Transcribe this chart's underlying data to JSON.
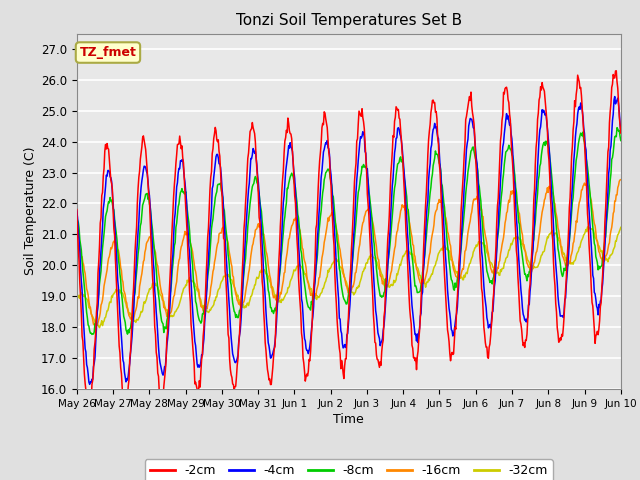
{
  "title": "Tonzi Soil Temperatures Set B",
  "xlabel": "Time",
  "ylabel": "Soil Temperature (C)",
  "ylim": [
    16.0,
    27.5
  ],
  "yticks": [
    16.0,
    17.0,
    18.0,
    19.0,
    20.0,
    21.0,
    22.0,
    23.0,
    24.0,
    25.0,
    26.0,
    27.0
  ],
  "bg_color": "#e0e0e0",
  "plot_bg": "#e8e8e8",
  "grid_color": "#ffffff",
  "colors": {
    "-2cm": "#ff0000",
    "-4cm": "#0000ff",
    "-8cm": "#00cc00",
    "-16cm": "#ff8800",
    "-32cm": "#cccc00"
  },
  "annotation_text": "TZ_fmet",
  "annotation_color": "#cc0000",
  "annotation_bg": "#ffffcc",
  "annotation_border": "#aaaa44",
  "n_days": 15,
  "periods_per_day": 48,
  "xtick_days": [
    0,
    1,
    2,
    3,
    4,
    5,
    6,
    7,
    8,
    9,
    10,
    11,
    12,
    13,
    14,
    15
  ],
  "xtick_labels": [
    "May 26",
    "May 27",
    "May 28",
    "May 29",
    "May 30",
    "May 31",
    "Jun 1",
    "Jun 2",
    "Jun 3",
    "Jun 4",
    "Jun 5",
    "Jun 6",
    "Jun 7",
    "Jun 8",
    "Jun 9",
    "Jun 10"
  ]
}
